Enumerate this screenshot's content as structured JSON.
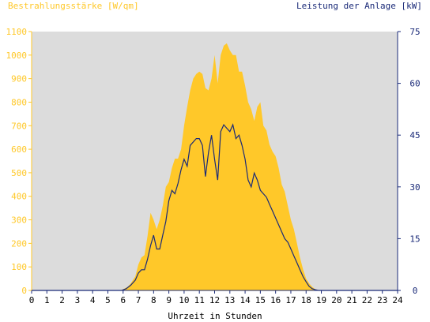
{
  "chart_data": {
    "type": "area",
    "title": "",
    "left_axis_label": "Bestrahlungsstärke [W/qm]",
    "right_axis_label": "Leistung der Anlage [kW]",
    "xlabel": "Uhrzeit in Stunden",
    "x_range": [
      0,
      24
    ],
    "x_ticks": [
      "0",
      "1",
      "2",
      "3",
      "4",
      "5",
      "6",
      "7",
      "8",
      "9",
      "10",
      "11",
      "12",
      "13",
      "14",
      "15",
      "16",
      "17",
      "18",
      "19",
      "20",
      "21",
      "22",
      "23",
      "24"
    ],
    "left_ylim": [
      0,
      1100
    ],
    "left_ticks": [
      "0",
      "100",
      "200",
      "300",
      "400",
      "500",
      "600",
      "700",
      "800",
      "900",
      "1000",
      "1100"
    ],
    "right_ylim": [
      0,
      75
    ],
    "right_ticks": [
      "0",
      "15",
      "30",
      "45",
      "60",
      "75"
    ],
    "grid": false,
    "series": [
      {
        "name": "Bestrahlungsstärke [W/qm]",
        "axis": "left",
        "style": "area",
        "x": [
          0,
          5.8,
          6.0,
          6.3,
          6.5,
          6.8,
          7.0,
          7.2,
          7.4,
          7.6,
          7.8,
          8.0,
          8.2,
          8.4,
          8.6,
          8.8,
          9.0,
          9.2,
          9.4,
          9.6,
          9.8,
          10.0,
          10.2,
          10.4,
          10.6,
          10.8,
          11.0,
          11.2,
          11.4,
          11.6,
          11.8,
          12.0,
          12.2,
          12.4,
          12.6,
          12.8,
          13.0,
          13.2,
          13.4,
          13.6,
          13.8,
          14.0,
          14.2,
          14.4,
          14.6,
          14.8,
          15.0,
          15.2,
          15.4,
          15.6,
          15.8,
          16.0,
          16.2,
          16.4,
          16.6,
          16.8,
          17.0,
          17.2,
          17.4,
          17.6,
          17.8,
          18.0,
          18.2,
          18.4,
          18.6,
          18.8,
          19.0,
          24
        ],
        "values": [
          0,
          0,
          5,
          15,
          30,
          60,
          110,
          140,
          150,
          230,
          330,
          300,
          260,
          300,
          360,
          440,
          460,
          520,
          560,
          560,
          600,
          700,
          780,
          850,
          900,
          920,
          930,
          920,
          860,
          850,
          900,
          1000,
          880,
          1000,
          1040,
          1050,
          1020,
          1000,
          1000,
          930,
          930,
          870,
          800,
          770,
          720,
          780,
          800,
          700,
          680,
          620,
          590,
          570,
          520,
          450,
          420,
          360,
          300,
          260,
          200,
          140,
          90,
          50,
          30,
          15,
          5,
          2,
          0,
          0
        ]
      },
      {
        "name": "Leistung der Anlage [kW]",
        "axis": "right",
        "style": "line",
        "x": [
          0,
          5.9,
          6.2,
          6.5,
          6.8,
          7.0,
          7.2,
          7.4,
          7.6,
          7.8,
          8.0,
          8.2,
          8.4,
          8.6,
          8.8,
          9.0,
          9.2,
          9.4,
          9.6,
          9.8,
          10.0,
          10.2,
          10.4,
          10.6,
          10.8,
          11.0,
          11.2,
          11.4,
          11.6,
          11.8,
          12.0,
          12.2,
          12.4,
          12.6,
          12.8,
          13.0,
          13.2,
          13.4,
          13.6,
          13.8,
          14.0,
          14.2,
          14.4,
          14.6,
          14.8,
          15.0,
          15.2,
          15.4,
          15.6,
          15.8,
          16.0,
          16.2,
          16.4,
          16.6,
          16.8,
          17.0,
          17.2,
          17.4,
          17.6,
          17.8,
          18.0,
          18.2,
          18.4,
          18.6,
          18.8,
          19.0,
          24
        ],
        "values": [
          0,
          0,
          0.5,
          1.5,
          3,
          5,
          6,
          6,
          9,
          13,
          16,
          12,
          12,
          16,
          20,
          26,
          29,
          28,
          31,
          35,
          38,
          36,
          42,
          43,
          44,
          44,
          42,
          33,
          40,
          45,
          38,
          32,
          46,
          48,
          47,
          46,
          48,
          44,
          45,
          42,
          38,
          32,
          30,
          34,
          32,
          29,
          28,
          27,
          25,
          23,
          21,
          19,
          17,
          15,
          14,
          12,
          10,
          8,
          6,
          4,
          2.5,
          1.2,
          0.5,
          0.2,
          0,
          0,
          0
        ]
      }
    ]
  },
  "colors": {
    "irradiance_fill": "#ffc829",
    "power_line": "#1a2a78",
    "plot_bg": "#dcdcdc",
    "left_axis": "#ffc829",
    "right_axis": "#1a2a78"
  }
}
